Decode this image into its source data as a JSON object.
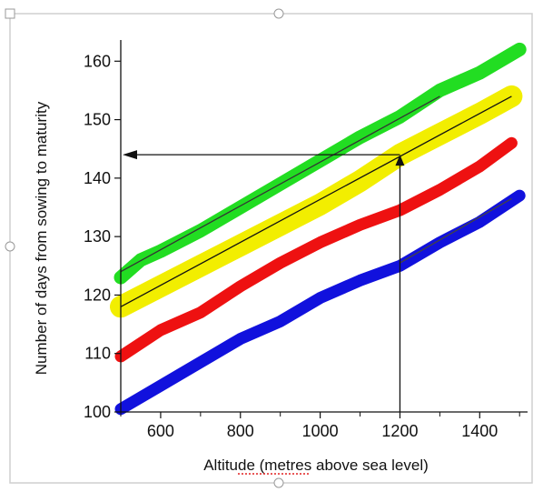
{
  "chart_data": {
    "type": "line",
    "title": "",
    "xlabel": "Altitude (metres above sea level)",
    "ylabel": "Number of days from sowing to maturity",
    "xlim": [
      500,
      1520
    ],
    "ylim": [
      100,
      163
    ],
    "x_ticks": [
      600,
      800,
      1000,
      1200,
      1400
    ],
    "y_ticks": [
      100,
      110,
      120,
      130,
      140,
      150,
      160
    ],
    "series": [
      {
        "color": "#22dd22",
        "points": [
          [
            500,
            123
          ],
          [
            550,
            126
          ],
          [
            600,
            127.5
          ],
          [
            700,
            131
          ],
          [
            800,
            135
          ],
          [
            900,
            139
          ],
          [
            1000,
            143
          ],
          [
            1100,
            147
          ],
          [
            1200,
            150.5
          ],
          [
            1300,
            155
          ],
          [
            1400,
            158
          ],
          [
            1500,
            162
          ]
        ]
      },
      {
        "color": "#f2ee00",
        "points": [
          [
            500,
            118
          ],
          [
            600,
            121.5
          ],
          [
            700,
            125
          ],
          [
            800,
            128.5
          ],
          [
            900,
            132
          ],
          [
            1000,
            135.5
          ],
          [
            1100,
            139.5
          ],
          [
            1200,
            144
          ],
          [
            1300,
            147.5
          ],
          [
            1400,
            151
          ],
          [
            1480,
            154
          ]
        ]
      },
      {
        "color": "#ee1111",
        "points": [
          [
            500,
            109.5
          ],
          [
            600,
            114
          ],
          [
            700,
            117
          ],
          [
            800,
            121.5
          ],
          [
            900,
            125.5
          ],
          [
            1000,
            129
          ],
          [
            1100,
            132
          ],
          [
            1200,
            134.5
          ],
          [
            1300,
            138
          ],
          [
            1400,
            142
          ],
          [
            1480,
            146
          ]
        ]
      },
      {
        "color": "#1111dd",
        "points": [
          [
            500,
            100.5
          ],
          [
            600,
            104.5
          ],
          [
            700,
            108.5
          ],
          [
            800,
            112.5
          ],
          [
            900,
            115.5
          ],
          [
            1000,
            119.5
          ],
          [
            1100,
            122.5
          ],
          [
            1200,
            125
          ],
          [
            1300,
            129
          ],
          [
            1400,
            132.5
          ],
          [
            1500,
            137
          ]
        ]
      }
    ],
    "fit_lines": [
      {
        "color": "#111111",
        "points": [
          [
            500,
            118
          ],
          [
            1480,
            154
          ]
        ]
      },
      {
        "color": "#333333",
        "points": [
          [
            500,
            124
          ],
          [
            1300,
            154
          ]
        ]
      },
      {
        "color": "#444444",
        "points": [
          [
            1200,
            125.5
          ],
          [
            1480,
            136.5
          ]
        ]
      }
    ],
    "annotation": {
      "altitude": 1200,
      "days": 144,
      "color": "#111111"
    }
  }
}
